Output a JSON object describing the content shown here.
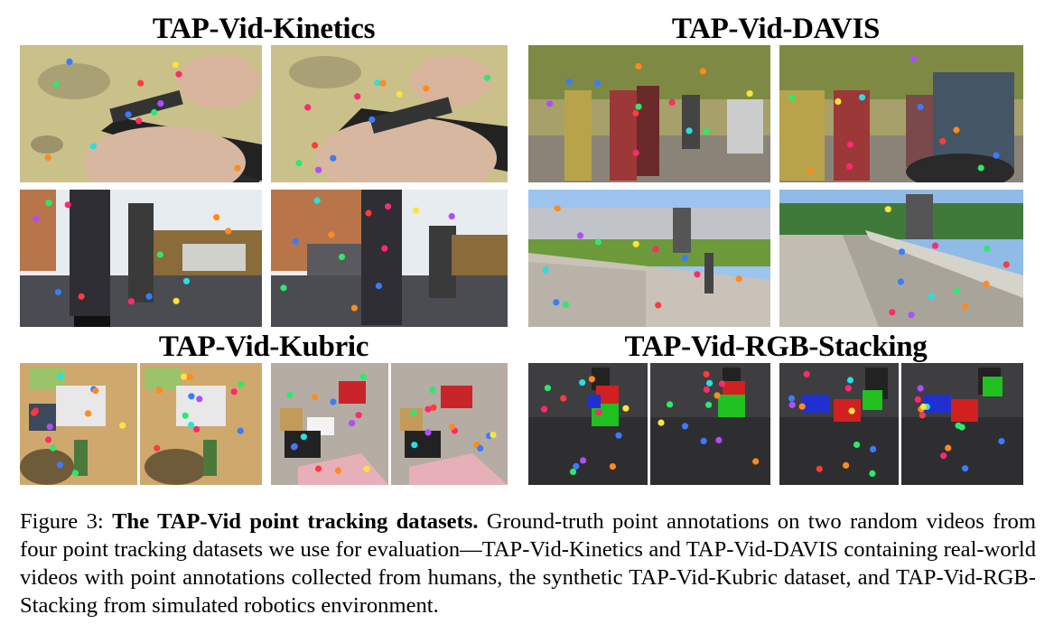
{
  "datasets": [
    {
      "title": "TAP-Vid-Kinetics"
    },
    {
      "title": "TAP-Vid-DAVIS"
    },
    {
      "title": "TAP-Vid-Kubric"
    },
    {
      "title": "TAP-Vid-RGB-Stacking"
    }
  ],
  "caption": {
    "label": "Figure 3:",
    "bold": "The TAP-Vid point tracking datasets.",
    "text": "Ground-truth point annotations on two random videos from four point tracking datasets we use for evaluation—TAP-Vid-Kinetics and TAP-Vid-DAVIS containing real-world videos with point annotations collected from humans, the synthetic TAP-Vid-Kubric dataset, and TAP-Vid-RGB-Stacking from simulated robotics environment."
  },
  "point_colors": [
    "#ff2a6d",
    "#2ee86b",
    "#3a7bff",
    "#ff8a1e",
    "#b04cff",
    "#27e0e0",
    "#ffe23a",
    "#ff3b3b"
  ]
}
